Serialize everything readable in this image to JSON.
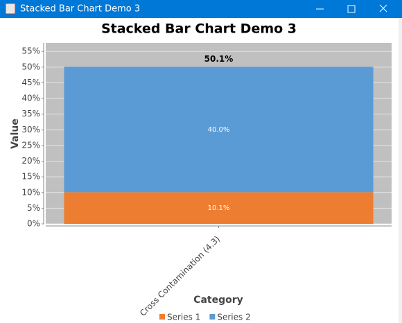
{
  "window_title": "Stacked Bar Chart Demo 3",
  "chart_data": {
    "type": "stacked_bar",
    "title": "Stacked Bar Chart Demo 3",
    "x_label": "Category",
    "y_label": "Value",
    "categories": [
      "Cross Contamination (4.3)"
    ],
    "series": [
      {
        "name": "Series 1",
        "color": "#ed7d31",
        "values": [
          10.1
        ],
        "value_labels": [
          "10.1%"
        ]
      },
      {
        "name": "Series 2",
        "color": "#5b9bd5",
        "values": [
          40.0
        ],
        "value_labels": [
          "40.0%"
        ]
      }
    ],
    "total_labels": [
      "50.1%"
    ],
    "ylim": [
      0,
      57.7
    ],
    "yticks": [
      {
        "value": 0,
        "label": "0%"
      },
      {
        "value": 5,
        "label": "5%"
      },
      {
        "value": 10,
        "label": "10%"
      },
      {
        "value": 15,
        "label": "15%"
      },
      {
        "value": 20,
        "label": "20%"
      },
      {
        "value": 25,
        "label": "25%"
      },
      {
        "value": 30,
        "label": "30%"
      },
      {
        "value": 35,
        "label": "35%"
      },
      {
        "value": 40,
        "label": "40%"
      },
      {
        "value": 45,
        "label": "45%"
      },
      {
        "value": 50,
        "label": "50%"
      },
      {
        "value": 55,
        "label": "55%"
      }
    ],
    "grid": true,
    "plot_background": "#c0c0c0"
  }
}
